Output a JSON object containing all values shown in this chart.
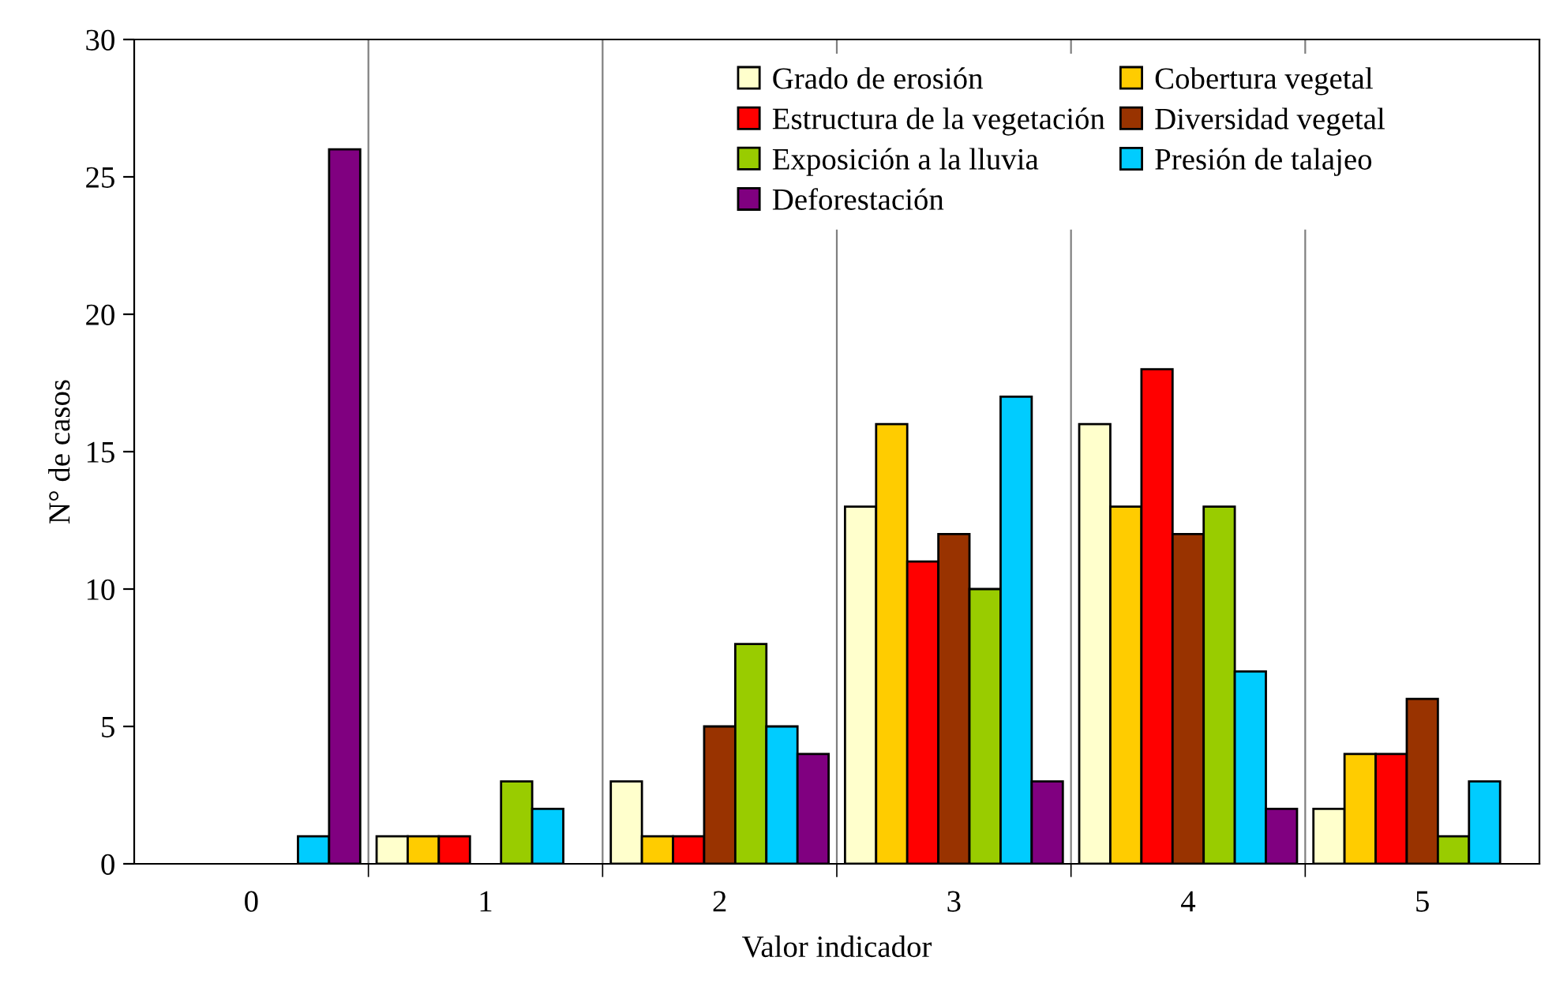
{
  "chart_data": {
    "type": "bar",
    "xlabel": "Valor indicador",
    "ylabel": "N° de casos",
    "categories": [
      "0",
      "1",
      "2",
      "3",
      "4",
      "5"
    ],
    "series": [
      {
        "name": "Grado de erosión",
        "color": "#ffffcc",
        "values": [
          0,
          1,
          3,
          13,
          16,
          2
        ]
      },
      {
        "name": "Cobertura vegetal",
        "color": "#ffcc00",
        "values": [
          0,
          1,
          1,
          16,
          13,
          4
        ]
      },
      {
        "name": "Estructura de la vegetación",
        "color": "#ff0000",
        "values": [
          0,
          1,
          1,
          11,
          18,
          4
        ]
      },
      {
        "name": "Diversidad vegetal",
        "color": "#993300",
        "values": [
          0,
          0,
          5,
          12,
          12,
          6
        ]
      },
      {
        "name": "Exposición a la lluvia",
        "color": "#99cc00",
        "values": [
          0,
          3,
          8,
          10,
          13,
          1
        ]
      },
      {
        "name": "Presión de talajeo",
        "color": "#00ccff",
        "values": [
          1,
          2,
          5,
          17,
          7,
          3
        ]
      },
      {
        "name": "Deforestación",
        "color": "#800080",
        "values": [
          26,
          0,
          4,
          3,
          2,
          0
        ]
      }
    ],
    "ylim": [
      0,
      30
    ],
    "yticks": [
      0,
      5,
      10,
      15,
      20,
      25,
      30
    ],
    "grid": "x",
    "legend": "top right"
  }
}
